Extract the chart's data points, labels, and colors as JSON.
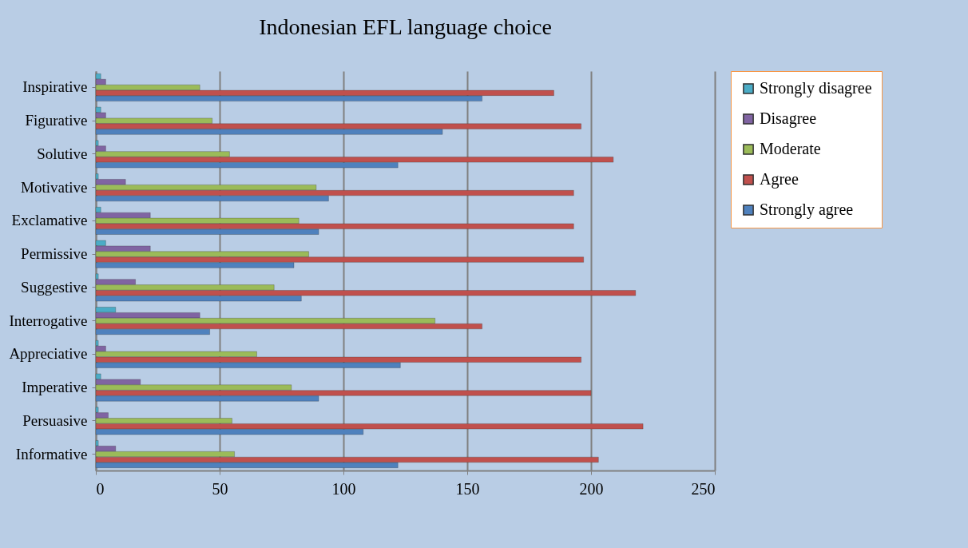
{
  "chart_data": {
    "type": "bar",
    "orientation": "horizontal",
    "title": "Indonesian EFL language choice",
    "categories": [
      "Inspirative",
      "Figurative",
      "Solutive",
      "Motivative",
      "Exclamative",
      "Permissive",
      "Suggestive",
      "Interrogative",
      "Appreciative",
      "Imperative",
      "Persuasive",
      "Informative"
    ],
    "series": [
      {
        "name": "Strongly disagree",
        "color": "#4bacc6",
        "values": [
          2,
          2,
          1,
          1,
          2,
          4,
          1,
          8,
          1,
          2,
          1,
          1
        ]
      },
      {
        "name": "Disagree",
        "color": "#8064a2",
        "values": [
          4,
          4,
          4,
          12,
          22,
          22,
          16,
          42,
          4,
          18,
          5,
          8
        ]
      },
      {
        "name": "Moderate",
        "color": "#9bbb59",
        "values": [
          42,
          47,
          54,
          89,
          82,
          86,
          72,
          137,
          65,
          79,
          55,
          56
        ]
      },
      {
        "name": "Agree",
        "color": "#c0504d",
        "values": [
          185,
          196,
          209,
          193,
          193,
          197,
          218,
          156,
          196,
          200,
          221,
          203
        ]
      },
      {
        "name": "Strongly agree",
        "color": "#4f81bd",
        "values": [
          156,
          140,
          122,
          94,
          90,
          80,
          83,
          46,
          123,
          90,
          108,
          122
        ]
      }
    ],
    "xlim": [
      0,
      250
    ],
    "xticks": [
      0,
      50,
      100,
      150,
      200,
      250
    ],
    "grid": "x",
    "legend": "right"
  }
}
